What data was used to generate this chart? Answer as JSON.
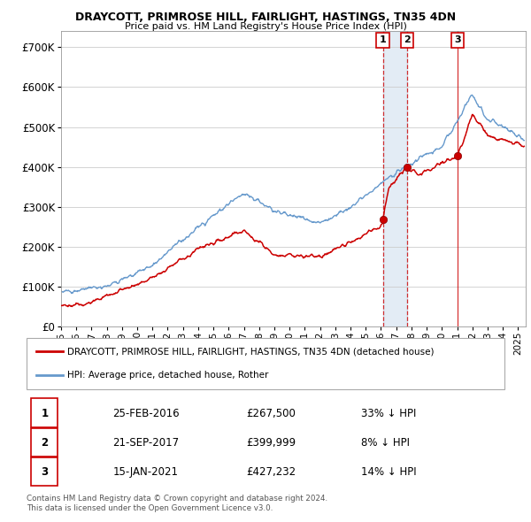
{
  "title": "DRAYCOTT, PRIMROSE HILL, FAIRLIGHT, HASTINGS, TN35 4DN",
  "subtitle": "Price paid vs. HM Land Registry's House Price Index (HPI)",
  "ylabel_ticks": [
    "£0",
    "£100K",
    "£200K",
    "£300K",
    "£400K",
    "£500K",
    "£600K",
    "£700K"
  ],
  "ytick_vals": [
    0,
    100000,
    200000,
    300000,
    400000,
    500000,
    600000,
    700000
  ],
  "ylim": [
    0,
    740000
  ],
  "xlim": [
    1995,
    2025.5
  ],
  "sale_dates_num": [
    2016.12,
    2017.72,
    2021.04
  ],
  "sale_prices": [
    267500,
    399999,
    427232
  ],
  "sale_labels": [
    "1",
    "2",
    "3"
  ],
  "legend_line1": "DRAYCOTT, PRIMROSE HILL, FAIRLIGHT, HASTINGS, TN35 4DN (detached house)",
  "legend_line2": "HPI: Average price, detached house, Rother",
  "table_rows": [
    [
      "1",
      "25-FEB-2016",
      "£267,500",
      "33% ↓ HPI"
    ],
    [
      "2",
      "21-SEP-2017",
      "£399,999",
      "8% ↓ HPI"
    ],
    [
      "3",
      "15-JAN-2021",
      "£427,232",
      "14% ↓ HPI"
    ]
  ],
  "footnote": "Contains HM Land Registry data © Crown copyright and database right 2024.\nThis data is licensed under the Open Government Licence v3.0.",
  "red_color": "#cc0000",
  "blue_color": "#6699cc",
  "shade_color": "#ddeeff",
  "bg_color": "#ffffff",
  "grid_color": "#cccccc"
}
